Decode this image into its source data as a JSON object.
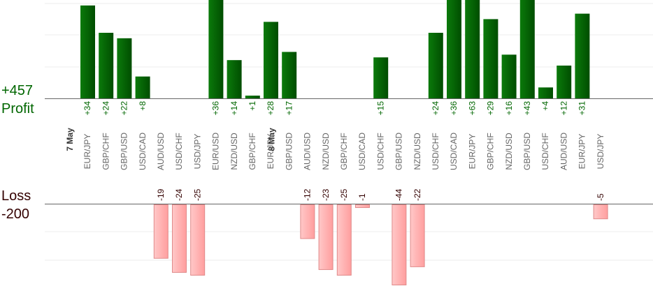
{
  "chart_data": {
    "type": "bar",
    "profit_total": "+457",
    "profit_label": "Profit",
    "loss_label": "Loss",
    "loss_total": "-200",
    "profit_ylim": [
      0,
      36
    ],
    "loss_ylim": [
      -25,
      0
    ],
    "date_markers": [
      {
        "label": "7 May",
        "before_index": 0
      },
      {
        "label": "8 May",
        "before_index": 11
      }
    ],
    "bars": [
      {
        "pair": "EUR/JPY",
        "value": 34,
        "label": "+34"
      },
      {
        "pair": "GBP/CHF",
        "value": 24,
        "label": "+24"
      },
      {
        "pair": "GBP/USD",
        "value": 22,
        "label": "+22"
      },
      {
        "pair": "USD/CAD",
        "value": 8,
        "label": "+8"
      },
      {
        "pair": "AUD/USD",
        "value": -19,
        "label": "-19"
      },
      {
        "pair": "USD/CHF",
        "value": -24,
        "label": "-24"
      },
      {
        "pair": "USD/JPY",
        "value": -25,
        "label": "-25"
      },
      {
        "pair": "EUR/USD",
        "value": 36,
        "label": "+36"
      },
      {
        "pair": "NZD/USD",
        "value": 14,
        "label": "+14"
      },
      {
        "pair": "GBP/CHF",
        "value": 1,
        "label": "+1"
      },
      {
        "pair": "EUR/JPY",
        "value": 28,
        "label": "+28"
      },
      {
        "pair": "GBP/USD",
        "value": 17,
        "label": "+17"
      },
      {
        "pair": "AUD/USD",
        "value": -12,
        "label": "-12"
      },
      {
        "pair": "NZD/USD",
        "value": -23,
        "label": "-23"
      },
      {
        "pair": "GBP/CHF",
        "value": -25,
        "label": "-25"
      },
      {
        "pair": "USD/CAD",
        "value": -1,
        "label": "-1"
      },
      {
        "pair": "USD/CHF",
        "value": 15,
        "label": "+15"
      },
      {
        "pair": "GBP/USD",
        "value": -44,
        "label": "-44"
      },
      {
        "pair": "NZD/USD",
        "value": -22,
        "label": "-22"
      },
      {
        "pair": "USD/CHF",
        "value": 24,
        "label": "+24"
      },
      {
        "pair": "USD/CAD",
        "value": 36,
        "label": "+36"
      },
      {
        "pair": "EUR/JPY",
        "value": 63,
        "label": "+63"
      },
      {
        "pair": "GBP/CHF",
        "value": 29,
        "label": "+29"
      },
      {
        "pair": "NZD/USD",
        "value": 16,
        "label": "+16"
      },
      {
        "pair": "GBP/USD",
        "value": 43,
        "label": "+43"
      },
      {
        "pair": "USD/CHF",
        "value": 4,
        "label": "+4"
      },
      {
        "pair": "AUD/USD",
        "value": 12,
        "label": "+12"
      },
      {
        "pair": "EUR/JPY",
        "value": 31,
        "label": "+31"
      },
      {
        "pair": "USD/JPY",
        "value": -5,
        "label": "-5"
      }
    ],
    "colors": {
      "profit_bar": "#006600",
      "profit_text": "#006600",
      "loss_bar": "#ffb3b3",
      "loss_text": "#330000",
      "pair_text": "#666666",
      "date_text": "#333333",
      "grid": "#eeeeee",
      "axis": "#666666"
    }
  }
}
